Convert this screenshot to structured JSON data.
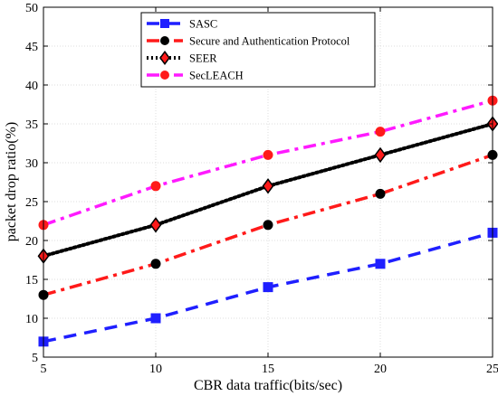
{
  "chart_data": {
    "type": "line",
    "xlabel": "CBR data traffic(bits/sec)",
    "ylabel": "packet drop ratio(%)",
    "x": [
      5,
      10,
      15,
      20,
      25
    ],
    "xlim": [
      5,
      25
    ],
    "ylim": [
      5,
      50
    ],
    "xticks": [
      "5",
      "10",
      "15",
      "20",
      "25"
    ],
    "yticks": [
      "5",
      "10",
      "15",
      "20",
      "25",
      "30",
      "35",
      "40",
      "45",
      "50"
    ],
    "grid": true,
    "legend_position": "top-center",
    "series": [
      {
        "name": "SASC",
        "values": [
          7,
          10,
          14,
          17,
          21
        ],
        "color": "#1f1fff",
        "line_style": "dashed",
        "marker": "square"
      },
      {
        "name": "Secure and Authentication Protocol",
        "values": [
          13,
          17,
          22,
          26,
          31
        ],
        "color": "#ff1a1a",
        "line_style": "dash-dot",
        "marker": "circle",
        "marker_color": "#000000"
      },
      {
        "name": "SEER",
        "values": [
          18,
          22,
          27,
          31,
          35
        ],
        "color": "#000000",
        "line_style": "dotted",
        "marker": "diamond",
        "marker_color": "#ff1a1a"
      },
      {
        "name": "SecLEACH",
        "values": [
          22,
          27,
          31,
          34,
          38
        ],
        "color": "#ff1aff",
        "line_style": "dash-dot",
        "marker": "circle",
        "marker_color": "#ff1a1a"
      }
    ]
  }
}
